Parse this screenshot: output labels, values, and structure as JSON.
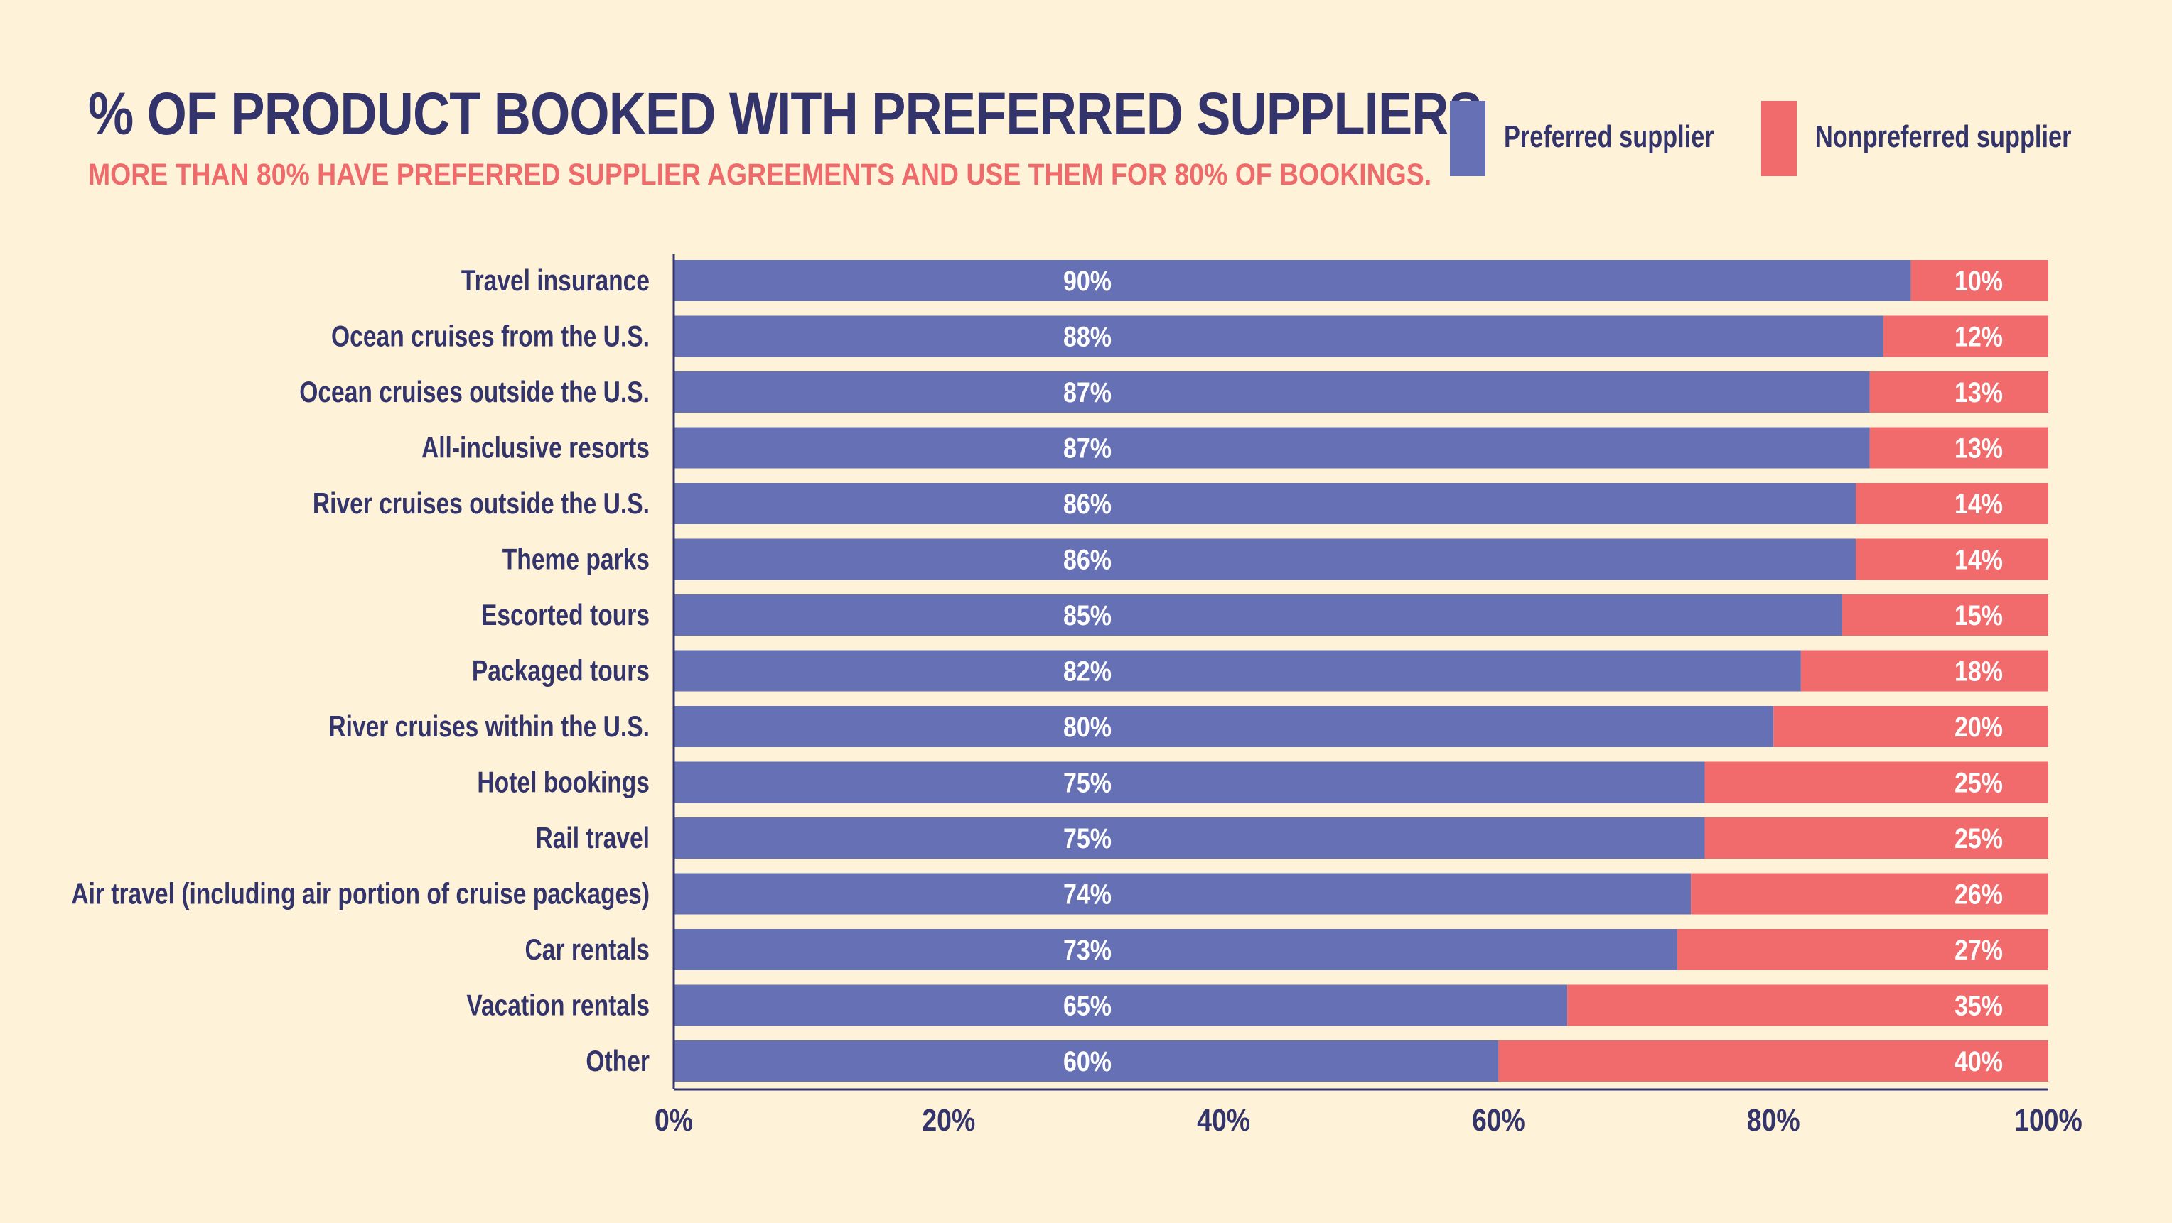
{
  "title": "% OF PRODUCT BOOKED WITH PREFERRED SUPPLIERS",
  "subtitle": "MORE THAN 80% HAVE PREFERRED SUPPLIER AGREEMENTS AND USE THEM FOR 80% OF BOOKINGS.",
  "legend": [
    {
      "label": "Preferred supplier",
      "color": "#6570b5"
    },
    {
      "label": "Nonpreferred supplier",
      "color": "#f16b6c"
    }
  ],
  "colors": {
    "background": "#fef3d8",
    "text": "#33346b",
    "accent": "#ef6b6b",
    "preferred": "#6570b5",
    "nonpreferred": "#f16b6c"
  },
  "chart_data": {
    "type": "bar",
    "orientation": "horizontal",
    "stacked": true,
    "categories": [
      "Travel insurance",
      "Ocean cruises from the U.S.",
      "Ocean cruises outside the U.S.",
      "All-inclusive resorts",
      "River cruises outside the U.S.",
      "Theme parks",
      "Escorted tours",
      "Packaged tours",
      "River cruises within the U.S.",
      "Hotel bookings",
      "Rail travel",
      "Air travel (including air portion of cruise packages)",
      "Car rentals",
      "Vacation rentals",
      "Other"
    ],
    "series": [
      {
        "name": "Preferred supplier",
        "values": [
          90,
          88,
          87,
          87,
          86,
          86,
          85,
          82,
          80,
          75,
          75,
          74,
          73,
          65,
          60
        ]
      },
      {
        "name": "Nonpreferred supplier",
        "values": [
          10,
          12,
          13,
          13,
          14,
          14,
          15,
          18,
          20,
          25,
          25,
          26,
          27,
          35,
          40
        ]
      }
    ],
    "value_labels": [
      [
        "90%",
        "88%",
        "87%",
        "87%",
        "86%",
        "86%",
        "85%",
        "82%",
        "80%",
        "75%",
        "75%",
        "74%",
        "73%",
        "65%",
        "60%"
      ],
      [
        "10%",
        "12%",
        "13%",
        "13%",
        "14%",
        "14%",
        "15%",
        "18%",
        "20%",
        "25%",
        "25%",
        "26%",
        "27%",
        "35%",
        "40%"
      ]
    ],
    "x_ticks": [
      "0%",
      "20%",
      "40%",
      "60%",
      "80%",
      "100%"
    ],
    "xlim": [
      0,
      100
    ],
    "grid": false,
    "legend_position": "top-right"
  }
}
